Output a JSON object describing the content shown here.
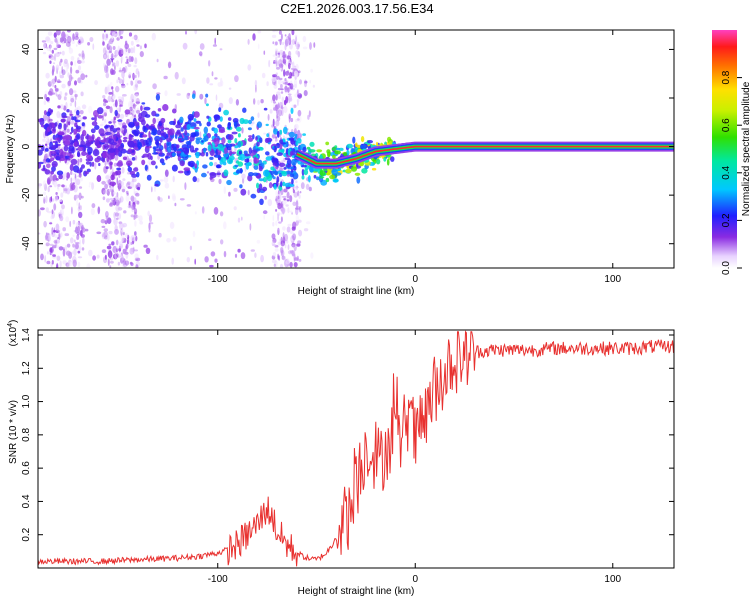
{
  "title": "C2E1.2026.003.17.56.E34",
  "chart_data": [
    {
      "type": "heatmap",
      "name": "spectrogram",
      "xlabel": "Height of straight line (km)",
      "ylabel": "Frequency (Hz)",
      "xlim": [
        -191,
        131
      ],
      "ylim": [
        -50,
        48
      ],
      "xticks": [
        -100,
        0,
        100
      ],
      "xtick_labels": [
        "-100",
        "0",
        "100"
      ],
      "yticks": [
        -40,
        -20,
        0,
        20,
        40
      ],
      "ytick_labels": [
        "-40",
        "-20",
        "0",
        "20",
        "40"
      ],
      "colorbar": {
        "label": "Normalized spectral amplitude",
        "range": [
          0,
          1
        ],
        "ticks": [
          0.0,
          0.2,
          0.4,
          0.6,
          0.8
        ],
        "tick_labels": [
          "0.0",
          "0.2",
          "0.4",
          "0.6",
          "0.8"
        ]
      },
      "ridge": {
        "x": [
          -190,
          -170,
          -150,
          -130,
          -110,
          -100,
          -90,
          -80,
          -70,
          -60,
          -50,
          -40,
          -30,
          -20,
          -10,
          0,
          10,
          20,
          40,
          60,
          80,
          100,
          131
        ],
        "freq": [
          2,
          1,
          1,
          3,
          2,
          0,
          -2,
          -5,
          -6,
          -3,
          -7,
          -7,
          -5,
          -2,
          -1,
          0,
          0,
          0,
          0,
          0,
          0,
          0,
          0
        ],
        "amplitude": [
          0.1,
          0.1,
          0.1,
          0.15,
          0.25,
          0.3,
          0.35,
          0.35,
          0.35,
          0.25,
          0.5,
          0.6,
          0.7,
          0.8,
          0.85,
          0.95,
          0.95,
          0.95,
          0.95,
          0.95,
          0.95,
          0.95,
          0.95
        ]
      }
    },
    {
      "type": "line",
      "name": "snr",
      "xlabel": "Height of straight line (km)",
      "ylabel": "SNR (10 * v/v)",
      "y_multiplier": "(x10",
      "y_multiplier_exp": "4",
      "y_multiplier_close": ")",
      "xlim": [
        -191,
        131
      ],
      "ylim": [
        0,
        1.43
      ],
      "xticks": [
        -100,
        0,
        100
      ],
      "xtick_labels": [
        "-100",
        "0",
        "100"
      ],
      "yticks": [
        0.2,
        0.4,
        0.6,
        0.8,
        1.0,
        1.2,
        1.4
      ],
      "ytick_labels": [
        "0.2",
        "0.4",
        "0.6",
        "0.8",
        "1.0",
        "1.2",
        "1.4"
      ],
      "color": "#e8312f",
      "series": [
        {
          "name": "SNR",
          "x": [
            -191,
            -180,
            -160,
            -140,
            -120,
            -110,
            -100,
            -95,
            -90,
            -85,
            -80,
            -77,
            -75,
            -72,
            -70,
            -65,
            -60,
            -55,
            -50,
            -45,
            -42,
            -40,
            -38,
            -35,
            -32,
            -30,
            -28,
            -26,
            -24,
            -22,
            -20,
            -18,
            -15,
            -12,
            -10,
            -8,
            -6,
            -4,
            -2,
            0,
            2,
            4,
            6,
            8,
            10,
            12,
            14,
            16,
            18,
            20,
            25,
            30,
            40,
            50,
            60,
            70,
            80,
            90,
            100,
            110,
            120,
            131
          ],
          "y": [
            0.04,
            0.04,
            0.04,
            0.05,
            0.06,
            0.07,
            0.09,
            0.11,
            0.14,
            0.2,
            0.26,
            0.32,
            0.36,
            0.3,
            0.22,
            0.14,
            0.09,
            0.06,
            0.05,
            0.09,
            0.14,
            0.2,
            0.26,
            0.3,
            0.36,
            0.45,
            0.6,
            0.68,
            0.75,
            0.68,
            0.7,
            0.62,
            0.72,
            0.8,
            0.78,
            0.75,
            0.82,
            0.92,
            0.88,
            0.76,
            0.8,
            0.88,
            0.94,
            1.0,
            1.08,
            1.12,
            1.16,
            1.2,
            1.24,
            1.26,
            1.29,
            1.3,
            1.31,
            1.31,
            1.31,
            1.32,
            1.32,
            1.32,
            1.32,
            1.32,
            1.33,
            1.33
          ]
        }
      ]
    }
  ],
  "colors": {
    "snr_line": "#e8312f",
    "ridge_core": "#ff2a2a",
    "axis": "#000000"
  }
}
